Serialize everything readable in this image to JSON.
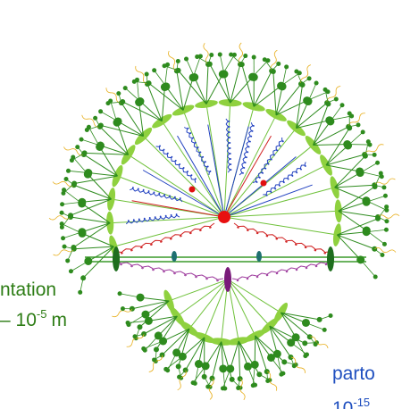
{
  "text_left": {
    "line1": "ntation",
    "line2": "– 10",
    "line2_sup": "-5",
    "line2_unit": "m"
  },
  "text_right": {
    "line1": "parto",
    "line2": "10",
    "line2_sup": "-15"
  }
}
